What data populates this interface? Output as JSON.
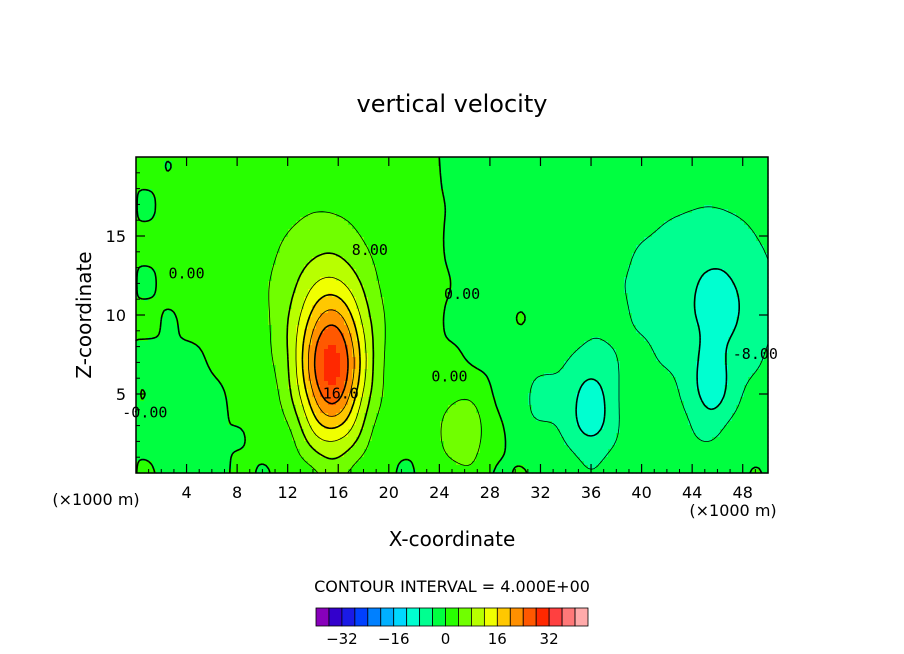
{
  "chart_data": {
    "type": "heatmap",
    "title": "vertical velocity",
    "xlabel": "X-coordinate",
    "ylabel": "Z-coordinate",
    "x_unit": "(×1000 m)",
    "z_unit": "(×1000 m)",
    "xlim": [
      0,
      50
    ],
    "ylim": [
      0,
      20
    ],
    "x_ticks": [
      "4",
      "8",
      "12",
      "16",
      "20",
      "24",
      "28",
      "32",
      "36",
      "40",
      "44",
      "48"
    ],
    "y_ticks": [
      "5",
      "10",
      "15"
    ],
    "contour_interval_text": "CONTOUR INTERVAL = 4.000E+00",
    "contour_labels": [
      {
        "text": "8.00",
        "x": 18.5,
        "z": 13.8
      },
      {
        "text": "0.00",
        "x": 4.0,
        "z": 12.3
      },
      {
        "text": "0.00",
        "x": 25.8,
        "z": 11.0
      },
      {
        "text": "16.0",
        "x": 16.2,
        "z": 4.7
      },
      {
        "text": "0.00",
        "x": 24.8,
        "z": 5.8
      },
      {
        "text": "-0.00",
        "x": 0.7,
        "z": 3.5
      },
      {
        "text": "-8.00",
        "x": 49.0,
        "z": 7.2
      }
    ],
    "max_value": 28,
    "min_value": -14,
    "features": [
      {
        "x": 15.5,
        "z": 6.5,
        "amp": 26,
        "sx": 1.9,
        "sz": 3.5
      },
      {
        "x": 14.5,
        "z": 11.5,
        "amp": 6,
        "sx": 4.0,
        "sz": 5.0
      },
      {
        "x": 25.8,
        "z": 2.6,
        "amp": 8,
        "sx": 1.4,
        "sz": 1.8
      },
      {
        "x": 4.0,
        "z": 3.0,
        "amp": -3,
        "sx": 1.6,
        "sz": 2.2
      },
      {
        "x": 41.0,
        "z": 12.0,
        "amp": -4,
        "sx": 7.0,
        "sz": 6.0
      },
      {
        "x": 46.5,
        "z": 10.5,
        "amp": -6,
        "sx": 3.0,
        "sz": 4.0
      },
      {
        "x": 36.0,
        "z": 3.8,
        "amp": -9,
        "sx": 1.4,
        "sz": 2.4
      },
      {
        "x": 32.0,
        "z": 4.5,
        "amp": -4,
        "sx": 1.5,
        "sz": 2.0
      },
      {
        "x": 45.5,
        "z": 5.0,
        "amp": -6,
        "sx": 1.2,
        "sz": 1.8
      },
      {
        "x": 42.5,
        "z": 2.0,
        "amp": -2,
        "sx": 2.0,
        "sz": 1.0
      },
      {
        "x": 30.5,
        "z": 9.8,
        "amp": 1.5,
        "sx": 0.5,
        "sz": 0.6
      }
    ],
    "colorbar": {
      "labels": [
        "-32",
        "-16",
        "0",
        "16",
        "32"
      ],
      "colors": [
        "#8800bb",
        "#3300cc",
        "#1a1ae6",
        "#0040ff",
        "#0080ff",
        "#00b0ff",
        "#00d8ff",
        "#00ffd0",
        "#00ff90",
        "#00ff40",
        "#28ff00",
        "#70ff00",
        "#b8ff00",
        "#f0ff00",
        "#ffc800",
        "#ff9000",
        "#ff5800",
        "#ff2800",
        "#ff4040",
        "#ff7878",
        "#ffaaaa"
      ]
    }
  }
}
